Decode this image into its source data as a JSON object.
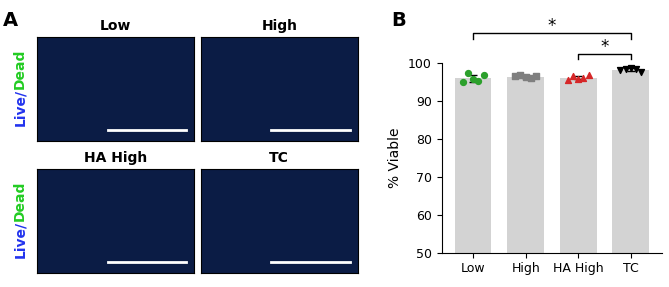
{
  "panel_labels": [
    "A",
    "B"
  ],
  "panel_A": {
    "images": [
      "Low",
      "High",
      "HA High",
      "TC"
    ],
    "stain_label": [
      {
        "text": "Live/",
        "color": "#2233ee"
      },
      {
        "text": "Dead",
        "color": "#22cc22"
      }
    ]
  },
  "chart_data": {
    "type": "bar",
    "categories": [
      "Low",
      "High",
      "HA High",
      "TC"
    ],
    "values": [
      96.0,
      96.4,
      96.2,
      98.3
    ],
    "errors": [
      0.9,
      0.3,
      0.5,
      0.4
    ],
    "color": "#d3d3d3",
    "y_label": "% Viable",
    "ylim": [
      50,
      100
    ],
    "yticks": [
      50,
      60,
      70,
      80,
      90,
      100
    ],
    "points": [
      {
        "color": "#2ca02c",
        "marker": "circle",
        "values": [
          95.0,
          97.3,
          95.8,
          95.2,
          96.8
        ]
      },
      {
        "color": "#7f7f7f",
        "marker": "square",
        "values": [
          96.5,
          96.8,
          96.3,
          96.0,
          96.6
        ]
      },
      {
        "color": "#d62728",
        "marker": "triangle_up",
        "values": [
          95.5,
          96.5,
          95.8,
          96.2,
          96.8
        ]
      },
      {
        "color": "#000000",
        "marker": "triangle_down",
        "values": [
          98.3,
          98.5,
          98.6,
          98.4,
          97.6
        ]
      }
    ],
    "annotations": [
      {
        "from": "Low",
        "to": "TC",
        "text": "*"
      },
      {
        "from": "HA High",
        "to": "TC",
        "text": "*"
      }
    ]
  }
}
